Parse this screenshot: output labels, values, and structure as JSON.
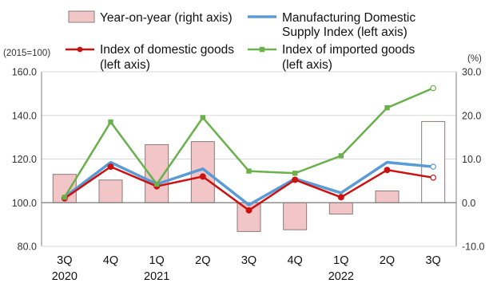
{
  "chart_data": {
    "type": "bar",
    "categories": [
      {
        "line1": "3Q",
        "line2": "2020"
      },
      {
        "line1": "4Q",
        "line2": ""
      },
      {
        "line1": "1Q",
        "line2": "2021"
      },
      {
        "line1": "2Q",
        "line2": ""
      },
      {
        "line1": "3Q",
        "line2": ""
      },
      {
        "line1": "4Q",
        "line2": ""
      },
      {
        "line1": "1Q",
        "line2": "2022"
      },
      {
        "line1": "2Q",
        "line2": ""
      },
      {
        "line1": "3Q",
        "line2": ""
      }
    ],
    "left_axis": {
      "unit": "(2015=100)",
      "min": 80,
      "max": 160,
      "ticks": [
        80,
        100,
        120,
        140,
        160
      ],
      "tick_labels": [
        "80.0",
        "100.0",
        "120.0",
        "140.0",
        "160.0"
      ]
    },
    "right_axis": {
      "unit": "(%)",
      "min": -10,
      "max": 30,
      "ticks": [
        -10,
        0,
        10,
        20,
        30
      ],
      "tick_labels": [
        "-10.0",
        "0.0",
        "10.0",
        "20.0",
        "30.0"
      ]
    },
    "bar_series": {
      "name": "Year-on-year (right axis)",
      "axis": "right",
      "color": "#f2c6c6",
      "edge": "#8a7a7a",
      "last_point_color": "#ffffff",
      "values": [
        6.5,
        5.2,
        13.3,
        14.0,
        -6.6,
        -6.2,
        -2.6,
        2.7,
        18.6
      ]
    },
    "line_series": [
      {
        "name": "Manufacturing Domestic Supply Index (left axis)",
        "legend_lines": [
          "Manufacturing Domestic",
          "Supply Index (left axis)"
        ],
        "axis": "left",
        "color": "#5b9bd5",
        "width": 3.5,
        "marker": "none",
        "values": [
          102.5,
          118.5,
          108.5,
          115.5,
          99.0,
          111.0,
          104.5,
          118.5,
          116.5
        ]
      },
      {
        "name": "Index of domestic goods (left axis)",
        "legend_lines": [
          "Index of domestic goods",
          "(left axis)"
        ],
        "axis": "left",
        "color": "#cc1111",
        "width": 2.5,
        "marker": "circle",
        "values": [
          102.0,
          116.5,
          107.5,
          112.0,
          96.5,
          110.5,
          102.5,
          115.0,
          111.5
        ]
      },
      {
        "name": "Index of imported goods (left axis)",
        "legend_lines": [
          "Index of imported goods",
          "(left axis)"
        ],
        "axis": "left",
        "color": "#6ab04c",
        "width": 2.5,
        "marker": "square",
        "values": [
          102.5,
          137.0,
          108.5,
          139.0,
          114.5,
          113.5,
          121.5,
          143.5,
          152.5
        ]
      }
    ],
    "legend": {
      "bar_label": "Year-on-year (right axis)",
      "placement": "top"
    },
    "grid": "horizontal",
    "xlabel": "",
    "title": ""
  }
}
